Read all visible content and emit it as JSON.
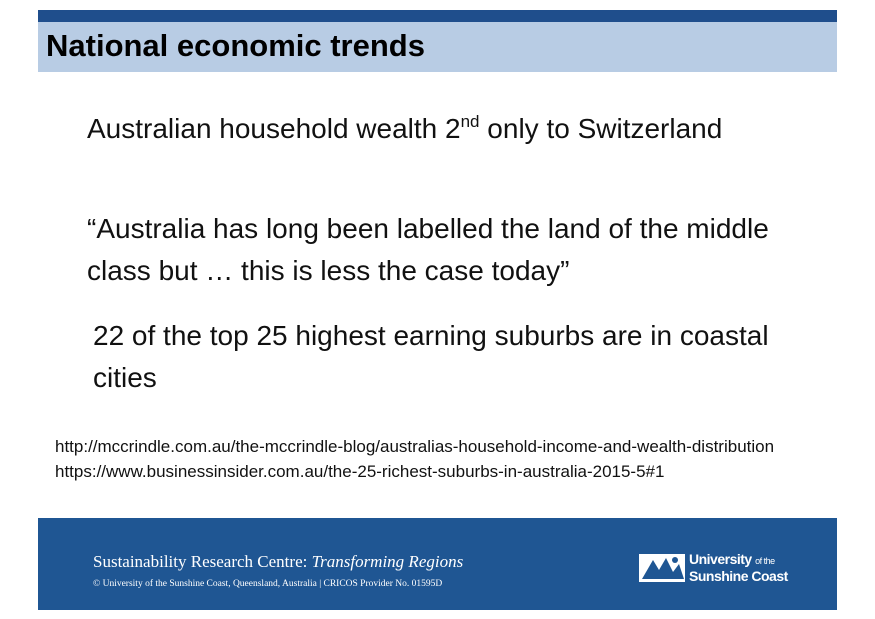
{
  "header": {
    "title": "National economic trends"
  },
  "points": [
    {
      "text": "Australian household wealth 2",
      "superscript": "nd",
      "text_after": " only to Switzerland"
    },
    {
      "text": "“Australia has long been labelled the land of the middle class but … this is less the case today”"
    },
    {
      "text": "22 of the top 25 highest earning suburbs are in coastal cities"
    }
  ],
  "sources": [
    "http://mccrindle.com.au/the-mccrindle-blog/australias-household-income-and-wealth-distribution",
    "https://www.businessinsider.com.au/the-25-richest-suburbs-in-australia-2015-5#1"
  ],
  "footer": {
    "centre": "Sustainability Research Centre: ",
    "centre_italic": "Transforming Regions",
    "copyright": "© University of the Sunshine Coast, Queensland, Australia | CRICOS Provider No. 01595D",
    "logo_line1": "University",
    "logo_of": "of the",
    "logo_line2": "Sunshine Coast"
  }
}
